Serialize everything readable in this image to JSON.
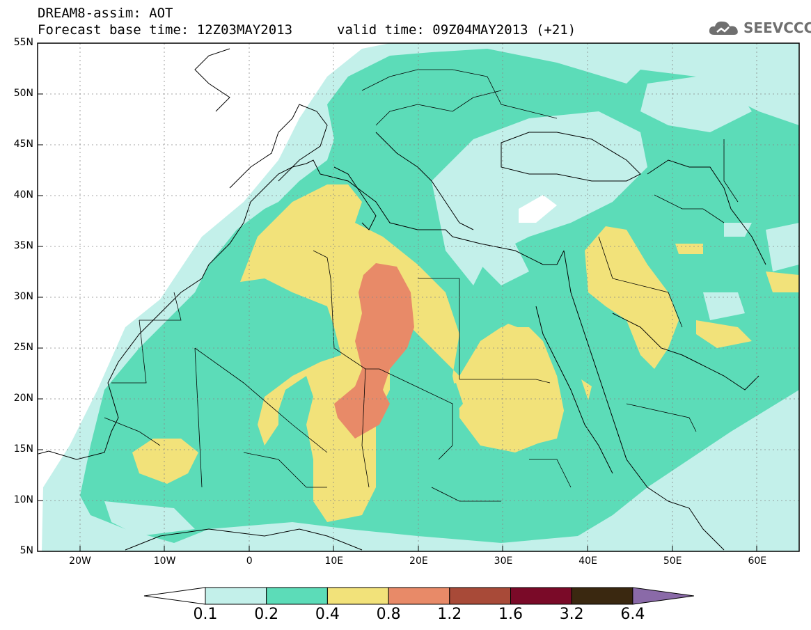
{
  "header": {
    "title": "DREAM8-assim: AOT",
    "base_time": "Forecast base time: 12Z03MAY2013",
    "valid_time": "valid time: 09Z04MAY2013 (+21)",
    "logo_text": "SEEVCCC",
    "logo_icon": "cloud-icon"
  },
  "map": {
    "lat_labels": [
      "55N",
      "50N",
      "45N",
      "40N",
      "35N",
      "30N",
      "25N",
      "20N",
      "15N",
      "10N",
      "5N"
    ],
    "lon_labels": [
      "20W",
      "10W",
      "0",
      "10E",
      "20E",
      "30E",
      "40E",
      "50E",
      "60E"
    ],
    "grid": true
  },
  "colorbar": {
    "levels": [
      "0.1",
      "0.2",
      "0.4",
      "0.8",
      "1.2",
      "1.6",
      "3.2",
      "6.4"
    ],
    "colors": [
      "#ffffff",
      "#c3f0ea",
      "#5cdcb8",
      "#f2e27a",
      "#e88a68",
      "#a84a38",
      "#7a0a28",
      "#3a2810",
      "#8a6aa8"
    ]
  }
}
